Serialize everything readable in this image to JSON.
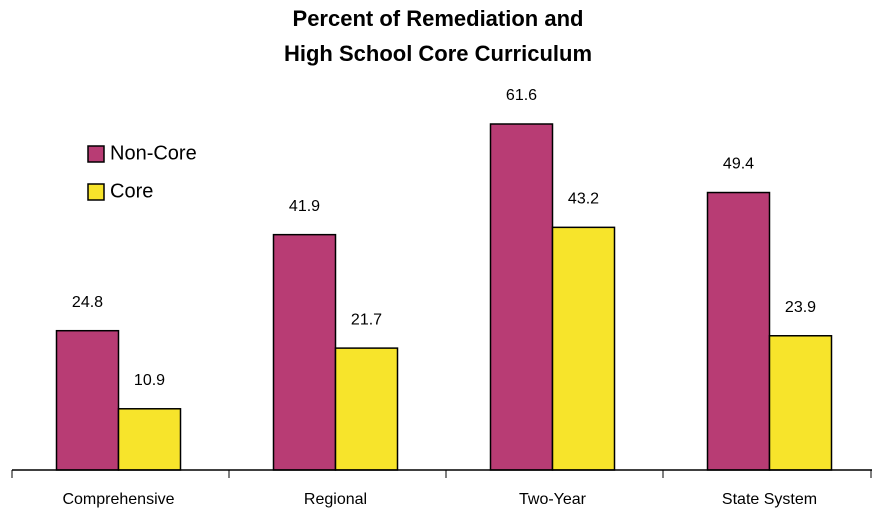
{
  "chart_data": {
    "type": "bar",
    "title": [
      "Percent of Remediation and",
      "High School Core Curriculum"
    ],
    "categories": [
      "Comprehensive",
      "Regional",
      "Two-Year",
      "State System"
    ],
    "series": [
      {
        "name": "Non-Core",
        "color": "#b83c74",
        "values": [
          24.8,
          41.9,
          61.6,
          49.4
        ]
      },
      {
        "name": "Core",
        "color": "#f7e42b",
        "values": [
          10.9,
          21.7,
          43.2,
          23.9
        ]
      }
    ],
    "legend": "upper left"
  }
}
